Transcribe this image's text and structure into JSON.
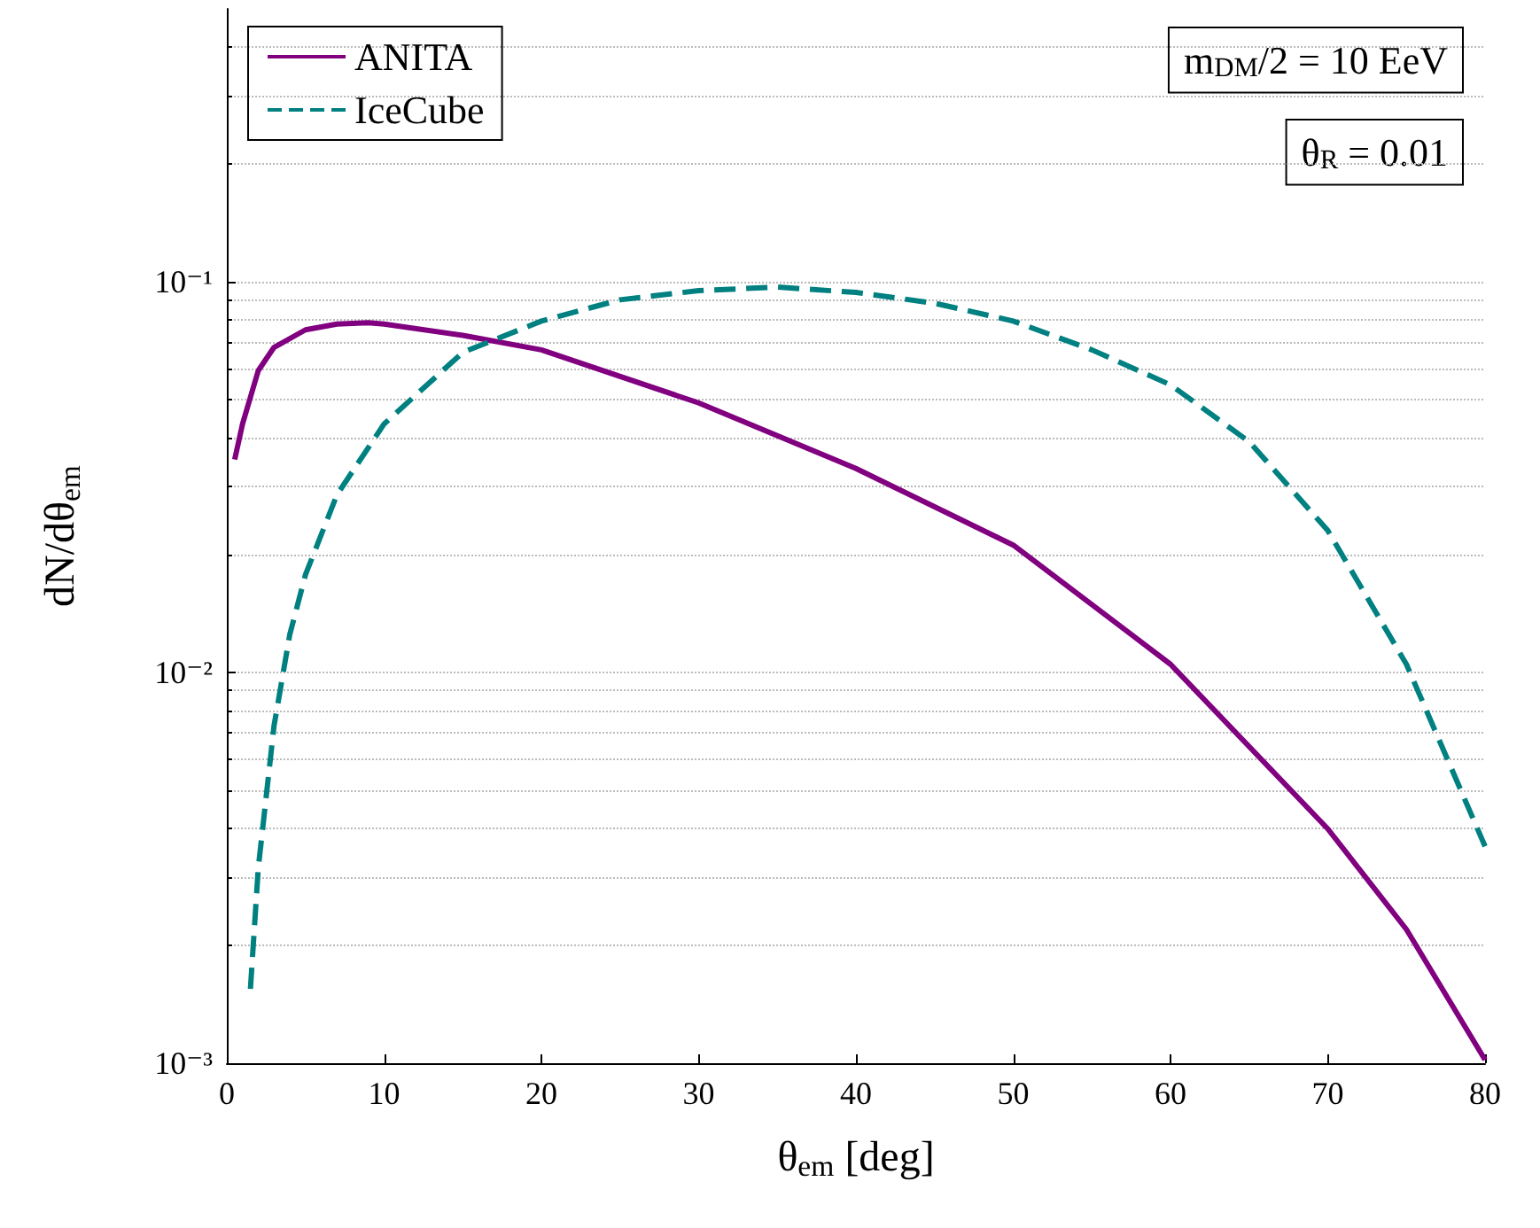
{
  "chart_data": {
    "type": "line",
    "xlabel": "θ$_{em}$ [deg]",
    "ylabel": "dN/dθ$_{em}$",
    "annotations": [
      "m$_{DM}$/2 = 10 EeV",
      "θ$_{R}$ = 0.01"
    ],
    "log": "y",
    "grid": "y",
    "legend": "top left",
    "marker": "none",
    "xlim": [
      0,
      80
    ],
    "xticks": [
      0,
      10,
      20,
      30,
      40,
      50,
      60,
      70,
      80
    ],
    "ylim": [
      0.001,
      0.5
    ],
    "yticks": [
      {
        "value": 0.001,
        "label": "10⁻³"
      },
      {
        "value": 0.01,
        "label": "10⁻²"
      },
      {
        "value": 0.1,
        "label": "10⁻¹"
      }
    ],
    "series": [
      {
        "name": "ANITA",
        "color": "#800080",
        "line_style": "solid",
        "x": [
          0.5,
          1,
          2,
          3,
          5,
          7,
          9,
          10,
          15,
          20,
          30,
          40,
          50,
          60,
          70,
          75,
          80
        ],
        "values": [
          0.0351,
          0.0433,
          0.0593,
          0.068,
          0.0754,
          0.078,
          0.0786,
          0.078,
          0.073,
          0.067,
          0.049,
          0.0333,
          0.0212,
          0.0105,
          0.00398,
          0.0022,
          0.00102
        ]
      },
      {
        "name": "IceCube",
        "color": "#008080",
        "line_style": "dashed",
        "x": [
          1.5,
          2,
          3,
          4,
          5,
          7,
          10,
          15,
          20,
          25,
          30,
          35,
          40,
          45,
          50,
          55,
          60,
          65,
          70,
          75,
          80
        ],
        "values": [
          0.00155,
          0.00316,
          0.0073,
          0.0125,
          0.0178,
          0.0285,
          0.0433,
          0.066,
          0.0794,
          0.09,
          0.095,
          0.097,
          0.094,
          0.0882,
          0.0794,
          0.067,
          0.0545,
          0.039,
          0.0231,
          0.0105,
          0.00359
        ]
      }
    ]
  }
}
